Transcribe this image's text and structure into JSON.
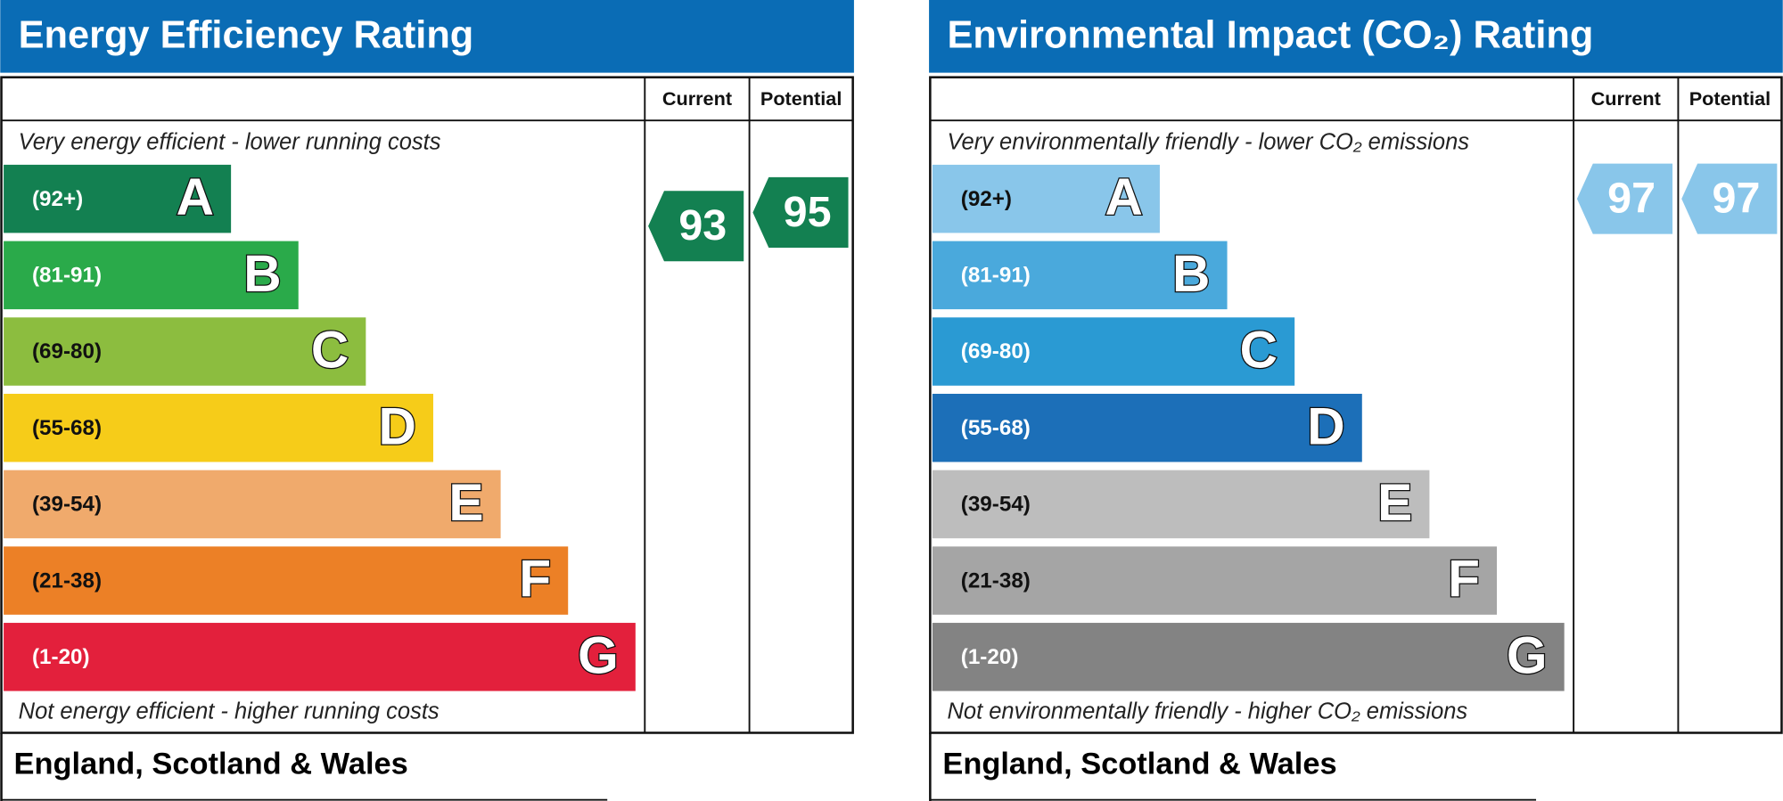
{
  "panels": [
    {
      "title": "Energy Efficiency Rating",
      "columns": [
        "Current",
        "Potential"
      ],
      "top_note": "Very energy efficient - lower running costs",
      "bottom_note": "Not energy efficient - higher running costs",
      "region": "England, Scotland & Wales",
      "bands": [
        {
          "range": "(92+)",
          "letter": "A",
          "color": "#138051"
        },
        {
          "range": "(81-91)",
          "letter": "B",
          "color": "#2aaa4a"
        },
        {
          "range": "(69-80)",
          "letter": "C",
          "color": "#8cbd3f"
        },
        {
          "range": "(55-68)",
          "letter": "D",
          "color": "#f6cc19"
        },
        {
          "range": "(39-54)",
          "letter": "E",
          "color": "#f0aa6c"
        },
        {
          "range": "(21-38)",
          "letter": "F",
          "color": "#ec8026"
        },
        {
          "range": "(1-20)",
          "letter": "G",
          "color": "#e3203c"
        }
      ],
      "current": 93,
      "potential": 95
    },
    {
      "title": "Environmental Impact (CO₂) Rating",
      "columns": [
        "Current",
        "Potential"
      ],
      "top_note": "Very environmentally friendly - lower CO₂ emissions",
      "bottom_note": "Not environmentally friendly - higher CO₂ emissions",
      "region": "England, Scotland & Wales",
      "bands": [
        {
          "range": "(92+)",
          "letter": "A",
          "color": "#89c6ea"
        },
        {
          "range": "(81-91)",
          "letter": "B",
          "color": "#4aa9dc"
        },
        {
          "range": "(69-80)",
          "letter": "C",
          "color": "#2a9ad3"
        },
        {
          "range": "(55-68)",
          "letter": "D",
          "color": "#1c6fb8"
        },
        {
          "range": "(39-54)",
          "letter": "E",
          "color": "#bdbdbd"
        },
        {
          "range": "(21-38)",
          "letter": "F",
          "color": "#a5a5a5"
        },
        {
          "range": "(1-20)",
          "letter": "G",
          "color": "#838383"
        }
      ],
      "current": 97,
      "potential": 97
    }
  ]
}
